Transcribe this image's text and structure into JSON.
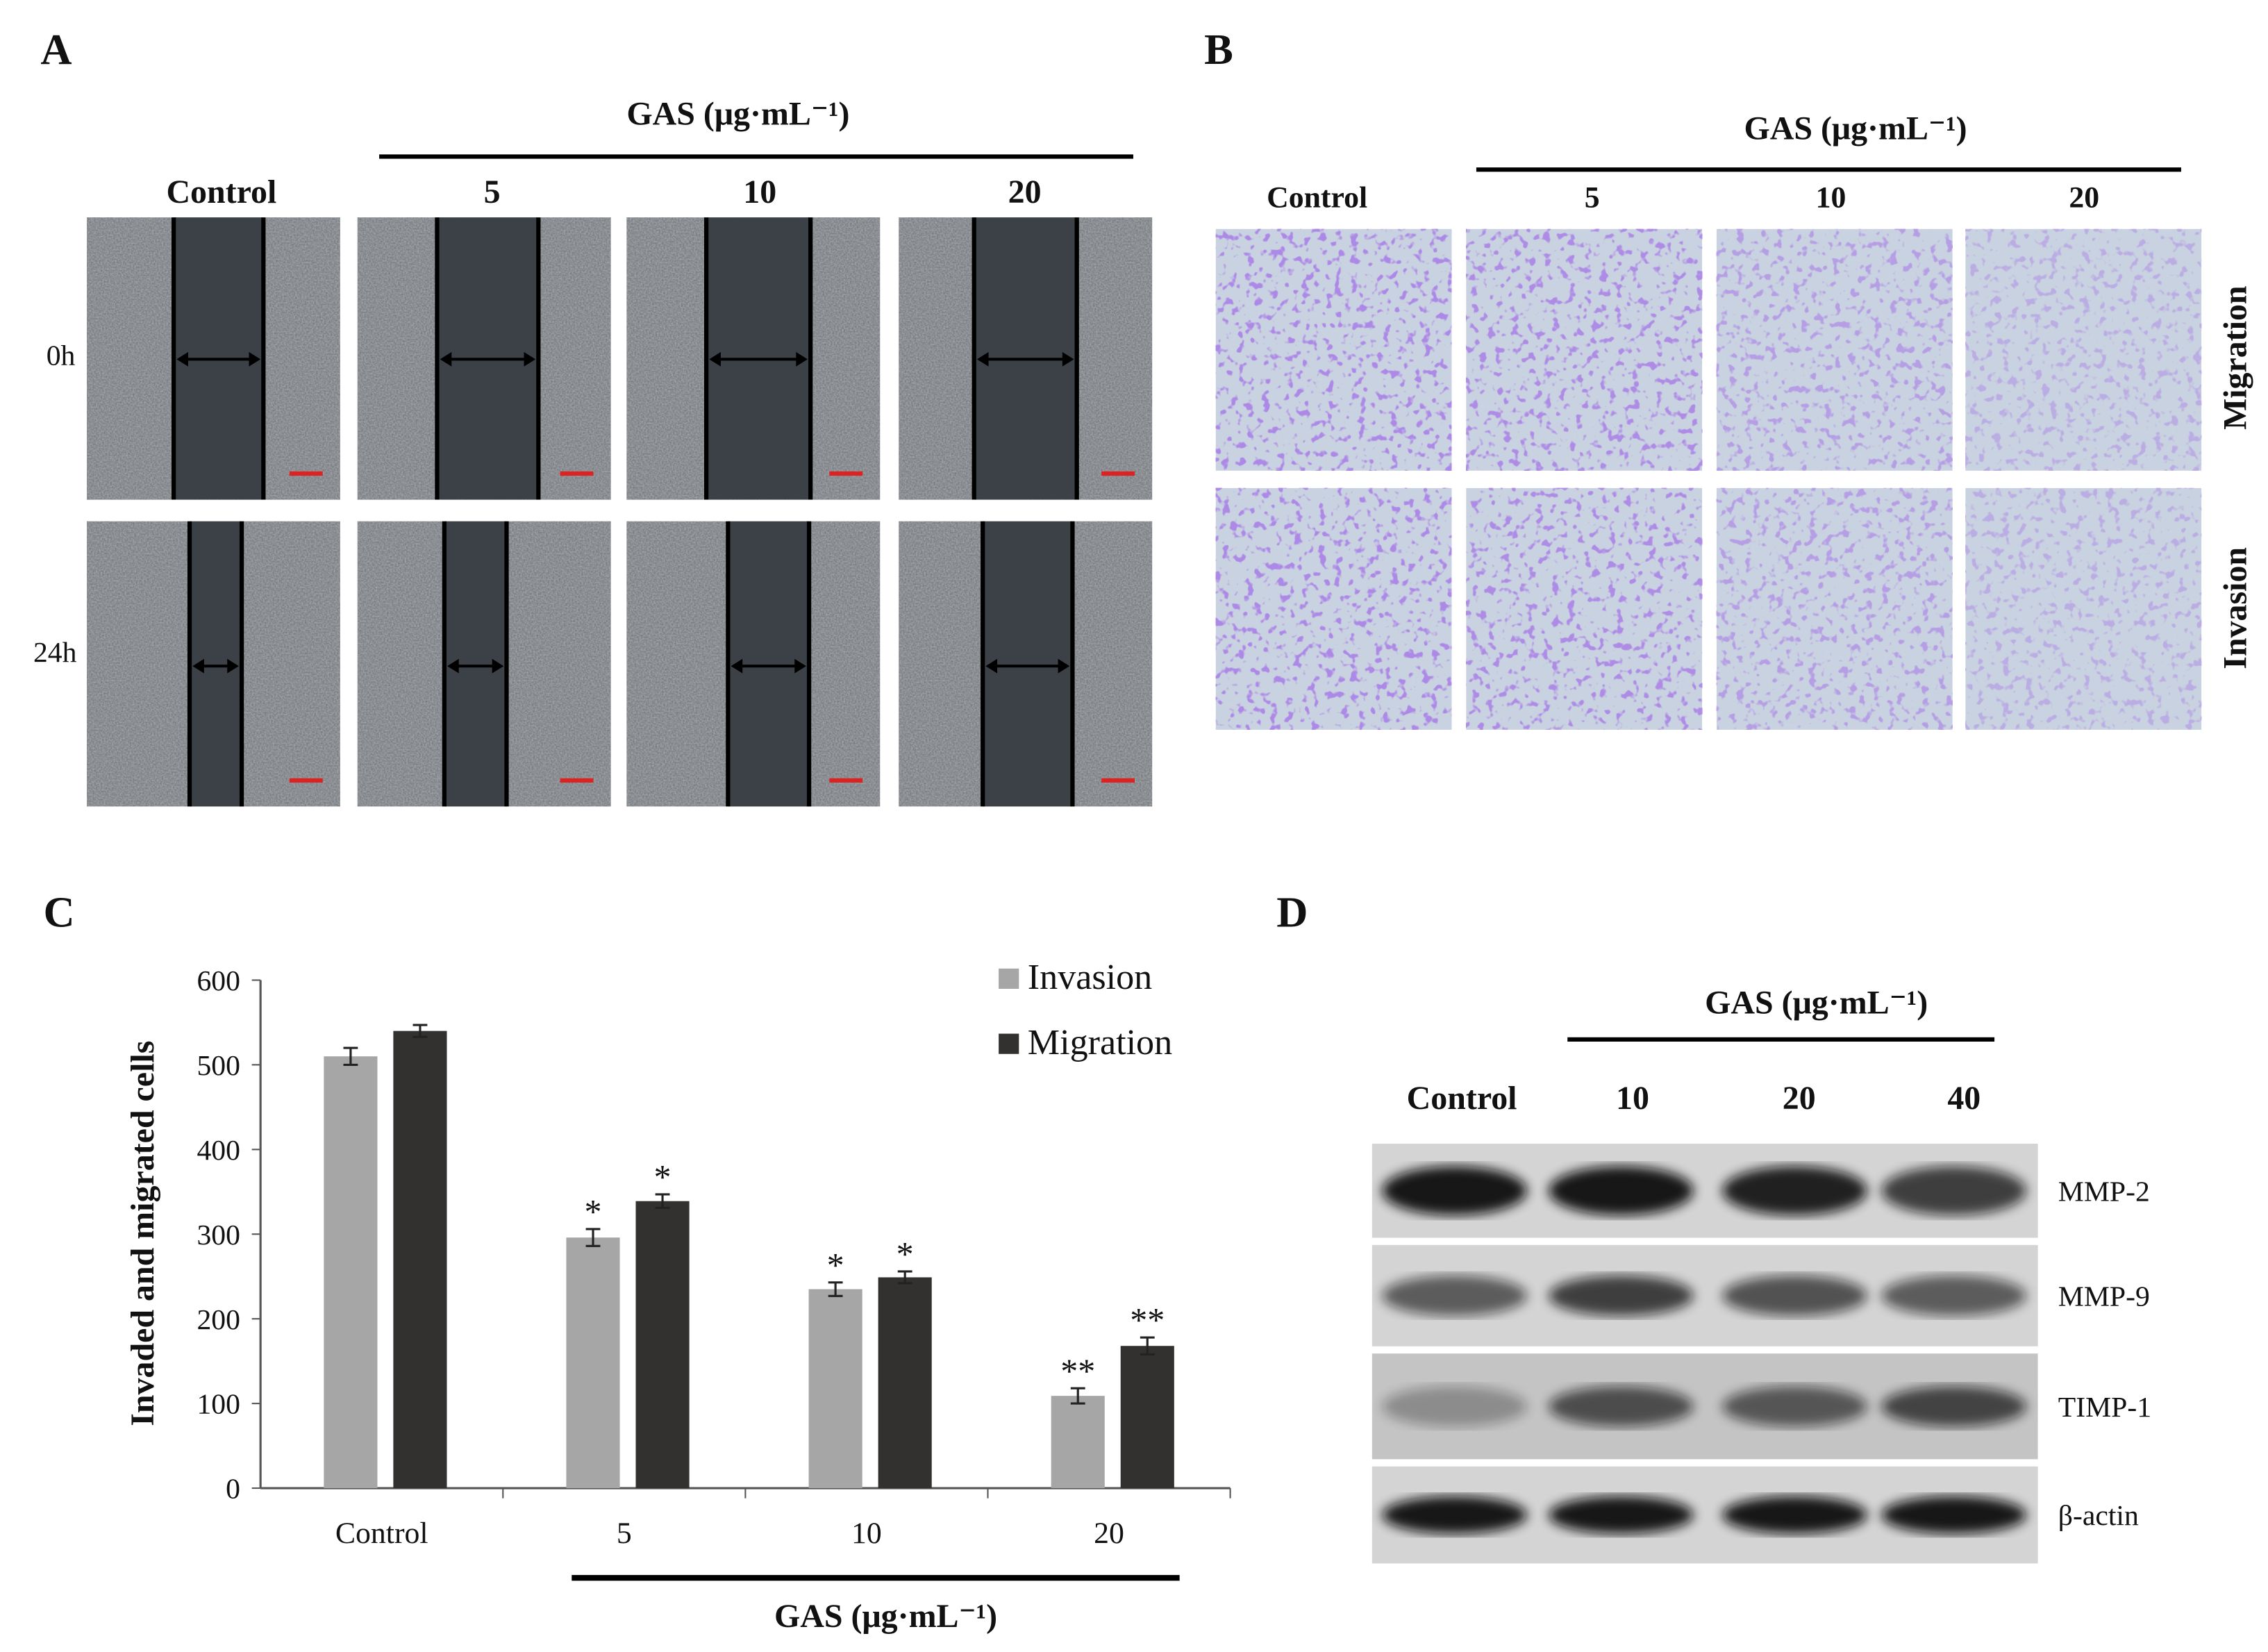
{
  "panels": {
    "a": {
      "label": "A",
      "gas_title": "GAS (μg·mL⁻¹)",
      "columns": [
        "Control",
        "5",
        "10",
        "20"
      ],
      "rows": [
        "0h",
        "24h"
      ]
    },
    "b": {
      "label": "B",
      "gas_title": "GAS (μg·mL⁻¹)",
      "columns": [
        "Control",
        "5",
        "10",
        "20"
      ],
      "rows": [
        "Migration",
        "Invasion"
      ]
    },
    "c": {
      "label": "C",
      "gas_title": "GAS (μg·mL⁻¹)"
    },
    "d": {
      "label": "D",
      "gas_title": "GAS (μg·mL⁻¹)",
      "columns": [
        "Control",
        "10",
        "20",
        "40"
      ],
      "rows": [
        "MMP-2",
        "MMP-9",
        "TIMP-1",
        "β-actin"
      ],
      "band_intensity": [
        [
          0.95,
          0.95,
          0.9,
          0.75
        ],
        [
          0.6,
          0.75,
          0.65,
          0.6
        ],
        [
          0.3,
          0.65,
          0.6,
          0.7
        ],
        [
          0.95,
          0.95,
          0.95,
          0.95
        ]
      ]
    }
  },
  "chart_data": {
    "type": "bar",
    "title": "",
    "xlabel": "GAS (μg·mL⁻¹)",
    "ylabel": "Invaded and migrated cells",
    "categories": [
      "Control",
      "5",
      "10",
      "20"
    ],
    "ylim": [
      0,
      600
    ],
    "yticks": [
      "0",
      "100",
      "200",
      "300",
      "400",
      "500",
      "600"
    ],
    "legend_position": "top-right",
    "series": [
      {
        "name": "Invasion",
        "color": "#a6a6a6",
        "values": [
          510,
          296,
          235,
          109
        ],
        "errors": [
          10,
          10,
          8,
          9
        ],
        "significance": [
          "",
          "*",
          "*",
          "**"
        ]
      },
      {
        "name": "Migration",
        "color": "#333030",
        "values": [
          540,
          339,
          249,
          168
        ],
        "errors": [
          7,
          8,
          7,
          10
        ],
        "significance": [
          "",
          "*",
          "*",
          "**"
        ]
      }
    ]
  }
}
